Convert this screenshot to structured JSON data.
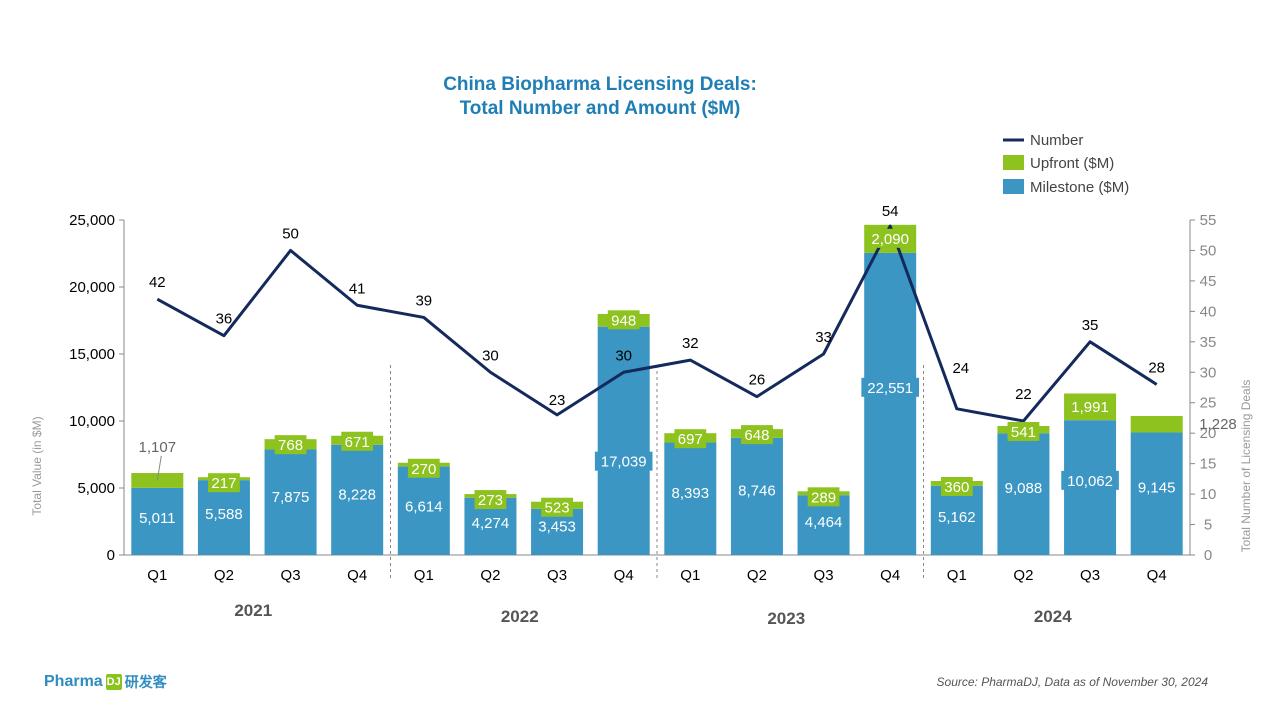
{
  "chart_data": {
    "type": "bar",
    "title_line1": "China Biopharma Licensing Deals:",
    "title_line2": "Total Number and Amount ($M)",
    "ylabel_left": "Total Value (in $M)",
    "ylabel_right": "Total Number of Licensing Deals",
    "y_left_ticks": [
      "0",
      "5,000",
      "10,000",
      "15,000",
      "20,000",
      "25,000"
    ],
    "y_left_range": [
      0,
      25000
    ],
    "y_right_ticks": [
      "0",
      "5",
      "10",
      "15",
      "20",
      "25",
      "30",
      "35",
      "40",
      "45",
      "50",
      "55"
    ],
    "y_right_range": [
      0,
      55
    ],
    "categories": [
      "Q1",
      "Q2",
      "Q3",
      "Q4",
      "Q1",
      "Q2",
      "Q3",
      "Q4",
      "Q1",
      "Q2",
      "Q3",
      "Q4",
      "Q1",
      "Q2",
      "Q3",
      "Q4"
    ],
    "years": [
      "2021",
      "2022",
      "2023",
      "2024"
    ],
    "legend": [
      "Number",
      "Upfront ($M)",
      "Milestone ($M)"
    ],
    "series": [
      {
        "name": "Milestone ($M)",
        "type": "bar",
        "color": "#3b96c4",
        "values": [
          5011,
          5588,
          7875,
          8228,
          6614,
          4274,
          3453,
          17039,
          8393,
          8746,
          4464,
          22551,
          5162,
          9088,
          10062,
          9145
        ],
        "labels": [
          "5,011",
          "5,588",
          "7,875",
          "8,228",
          "6,614",
          "4,274",
          "3,453",
          "17,039",
          "8,393",
          "8,746",
          "4,464",
          "22,551",
          "5,162",
          "9,088",
          "10,062",
          "9,145"
        ]
      },
      {
        "name": "Upfront ($M)",
        "type": "bar",
        "color": "#8dc21f",
        "values": [
          1107,
          217,
          768,
          671,
          270,
          273,
          523,
          948,
          697,
          648,
          289,
          2090,
          360,
          541,
          1991,
          1228
        ],
        "labels": [
          "1,107",
          "217",
          "768",
          "671",
          "270",
          "273",
          "523",
          "948",
          "697",
          "648",
          "289",
          "2,090",
          "360",
          "541",
          "1,991",
          "1,228"
        ]
      },
      {
        "name": "Number",
        "type": "line",
        "color": "#14295c",
        "values": [
          42,
          36,
          50,
          41,
          39,
          30,
          23,
          30,
          32,
          26,
          33,
          54,
          24,
          22,
          35,
          28
        ]
      }
    ]
  },
  "footer": {
    "brand_name": "Pharma",
    "brand_mark": "DJ",
    "brand_cn": "研发客",
    "source": "Source: PharmaDJ, Data as of November 30, 2024"
  }
}
